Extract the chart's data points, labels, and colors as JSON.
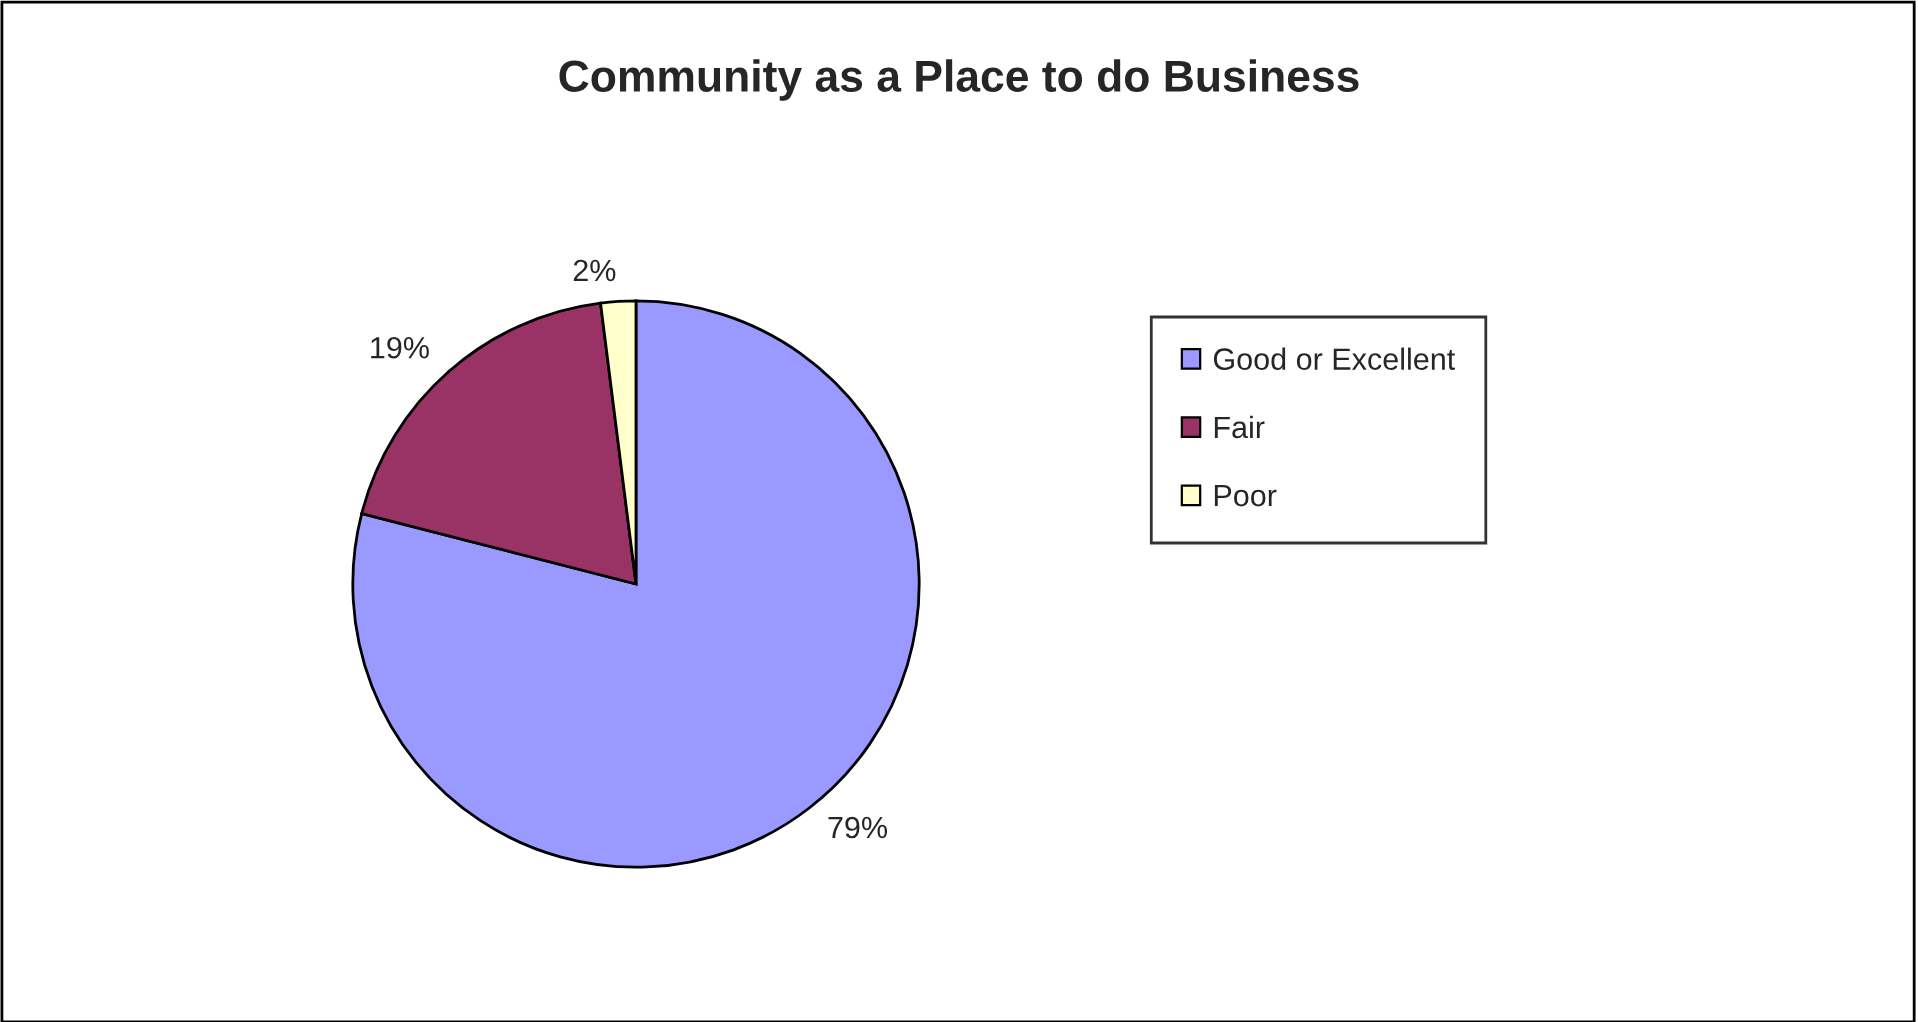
{
  "chart_data": {
    "type": "pie",
    "title": "Community as a Place to do Business",
    "categories": [
      "Good or Excellent",
      "Fair",
      "Poor"
    ],
    "values": [
      79,
      19,
      2
    ],
    "colors": [
      "#9999ff",
      "#993366",
      "#ffffcc"
    ],
    "value_labels": [
      "79%",
      "19%",
      "2%"
    ],
    "legend": "right"
  }
}
